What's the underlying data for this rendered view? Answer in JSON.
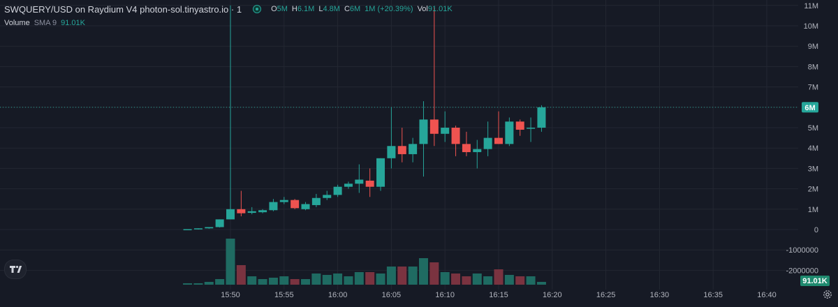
{
  "legend": {
    "symbol": "SWQUERY/USD on Raydium V4 photon-sol.tinyastro.io · 1",
    "ohlc": {
      "o_label": "O",
      "o_value": "5M",
      "h_label": "H",
      "h_value": "6.1M",
      "l_label": "L",
      "l_value": "4.8M",
      "c_label": "C",
      "c_value": "6M",
      "change": "1M (+20.39%)",
      "vol_label": "Vol",
      "vol_value": "91.01K"
    },
    "volume_label": "Volume",
    "volume_sma": "SMA 9",
    "volume_value": "91.01K"
  },
  "badges": {
    "last_price": "6M",
    "last_volume": "91.01K"
  },
  "colors": {
    "background": "#161a25",
    "grid": "#232732",
    "up": "#26a69a",
    "down": "#ef5350",
    "up_volume": "#1f6b62",
    "down_volume": "#7a3340",
    "axis_text": "#b2b5be"
  },
  "icons": {
    "exchange_dot": "status-dot-icon",
    "logo": "tradingview-logo",
    "settings": "gear-icon"
  },
  "chart_data": {
    "type": "candlestick",
    "title": "SWQUERY/USD on Raydium V4 photon-sol.tinyastro.io · 1",
    "y_ticks": [
      {
        "value": 11000000,
        "label": "11M"
      },
      {
        "value": 10000000,
        "label": "10M"
      },
      {
        "value": 9000000,
        "label": "9M"
      },
      {
        "value": 8000000,
        "label": "8M"
      },
      {
        "value": 7000000,
        "label": "7M"
      },
      {
        "value": 5000000,
        "label": "5M"
      },
      {
        "value": 4000000,
        "label": "4M"
      },
      {
        "value": 3000000,
        "label": "3M"
      },
      {
        "value": 2000000,
        "label": "2M"
      },
      {
        "value": 1000000,
        "label": "1M"
      },
      {
        "value": 0,
        "label": "0"
      },
      {
        "value": -1000000,
        "label": "-1000000"
      },
      {
        "value": -2000000,
        "label": "-2000000"
      }
    ],
    "ylim": [
      -2500000,
      11300000
    ],
    "x_ticks": [
      "15:50",
      "15:55",
      "16:00",
      "16:05",
      "16:10",
      "16:15",
      "16:20",
      "16:25",
      "16:30",
      "16:35",
      "16:40"
    ],
    "x_tick_minutes": [
      0,
      5,
      10,
      15,
      20,
      25,
      30,
      35,
      40,
      45,
      50
    ],
    "last_price": 6000000,
    "candles": [
      {
        "t": -4,
        "o": 0,
        "h": 0,
        "l": 0,
        "c": 20000,
        "v": 1
      },
      {
        "t": -3,
        "o": 20000,
        "h": 60000,
        "l": 0,
        "c": 60000,
        "v": 1
      },
      {
        "t": -2,
        "o": 60000,
        "h": 120000,
        "l": 40000,
        "c": 120000,
        "v": 2
      },
      {
        "t": -1,
        "o": 120000,
        "h": 500000,
        "l": 100000,
        "c": 500000,
        "v": 4
      },
      {
        "t": 0,
        "o": 500000,
        "h": 11000000,
        "l": 500000,
        "c": 1000000,
        "v": 33
      },
      {
        "t": 1,
        "o": 1000000,
        "h": 1900000,
        "l": 650000,
        "c": 800000,
        "v": 14
      },
      {
        "t": 2,
        "o": 820000,
        "h": 1100000,
        "l": 750000,
        "c": 900000,
        "v": 6
      },
      {
        "t": 3,
        "o": 850000,
        "h": 1000000,
        "l": 800000,
        "c": 950000,
        "v": 4
      },
      {
        "t": 4,
        "o": 950000,
        "h": 1500000,
        "l": 900000,
        "c": 1350000,
        "v": 5
      },
      {
        "t": 5,
        "o": 1350000,
        "h": 1600000,
        "l": 1250000,
        "c": 1450000,
        "v": 6
      },
      {
        "t": 6,
        "o": 1450000,
        "h": 1500000,
        "l": 1000000,
        "c": 1050000,
        "v": 4
      },
      {
        "t": 7,
        "o": 1000000,
        "h": 1350000,
        "l": 950000,
        "c": 1250000,
        "v": 4
      },
      {
        "t": 8,
        "o": 1200000,
        "h": 1750000,
        "l": 1100000,
        "c": 1550000,
        "v": 8
      },
      {
        "t": 9,
        "o": 1550000,
        "h": 1900000,
        "l": 1450000,
        "c": 1700000,
        "v": 7
      },
      {
        "t": 10,
        "o": 1700000,
        "h": 2200000,
        "l": 1600000,
        "c": 2100000,
        "v": 8
      },
      {
        "t": 11,
        "o": 2100000,
        "h": 2350000,
        "l": 2000000,
        "c": 2250000,
        "v": 6
      },
      {
        "t": 12,
        "o": 2250000,
        "h": 3200000,
        "l": 1800000,
        "c": 2450000,
        "v": 9
      },
      {
        "t": 13,
        "o": 2400000,
        "h": 3000000,
        "l": 1600000,
        "c": 2100000,
        "v": 9
      },
      {
        "t": 14,
        "o": 2100000,
        "h": 3500000,
        "l": 1900000,
        "c": 3500000,
        "v": 8
      },
      {
        "t": 15,
        "o": 3500000,
        "h": 6000000,
        "l": 3000000,
        "c": 4100000,
        "v": 13
      },
      {
        "t": 16,
        "o": 4100000,
        "h": 5000000,
        "l": 3300000,
        "c": 3700000,
        "v": 13
      },
      {
        "t": 17,
        "o": 3700000,
        "h": 4500000,
        "l": 3300000,
        "c": 4200000,
        "v": 13
      },
      {
        "t": 18,
        "o": 4200000,
        "h": 6300000,
        "l": 2600000,
        "c": 5400000,
        "v": 19
      },
      {
        "t": 19,
        "o": 5400000,
        "h": 10900000,
        "l": 4100000,
        "c": 4700000,
        "v": 16
      },
      {
        "t": 20,
        "o": 4700000,
        "h": 5800000,
        "l": 4300000,
        "c": 5000000,
        "v": 9
      },
      {
        "t": 21,
        "o": 5000000,
        "h": 5100000,
        "l": 3600000,
        "c": 4200000,
        "v": 8
      },
      {
        "t": 22,
        "o": 4200000,
        "h": 4800000,
        "l": 3600000,
        "c": 3800000,
        "v": 6
      },
      {
        "t": 23,
        "o": 3800000,
        "h": 4400000,
        "l": 3000000,
        "c": 3950000,
        "v": 8
      },
      {
        "t": 24,
        "o": 3950000,
        "h": 5300000,
        "l": 3600000,
        "c": 4500000,
        "v": 6
      },
      {
        "t": 25,
        "o": 4500000,
        "h": 5800000,
        "l": 4200000,
        "c": 4200000,
        "v": 11
      },
      {
        "t": 26,
        "o": 4200000,
        "h": 5500000,
        "l": 4100000,
        "c": 5300000,
        "v": 7
      },
      {
        "t": 27,
        "o": 5300000,
        "h": 5400000,
        "l": 4600000,
        "c": 4900000,
        "v": 6
      },
      {
        "t": 28,
        "o": 4950000,
        "h": 5500000,
        "l": 4300000,
        "c": 5000000,
        "v": 6
      },
      {
        "t": 29,
        "o": 5000000,
        "h": 6100000,
        "l": 4800000,
        "c": 6000000,
        "v": 2
      }
    ]
  }
}
